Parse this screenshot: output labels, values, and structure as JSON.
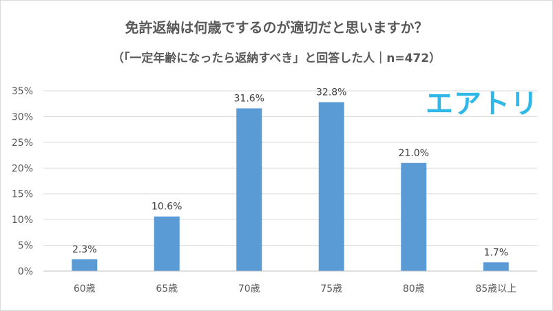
{
  "chart_data": {
    "type": "bar",
    "title": "免許返納は何歳でするのが適切だと思いますか？",
    "subtitle": "（「一定年齢になったら返納すべき」と回答した人｜n=472）",
    "categories": [
      "60歳",
      "65歳",
      "70歳",
      "75歳",
      "80歳",
      "85歳以上"
    ],
    "values": [
      2.3,
      10.6,
      31.6,
      32.8,
      21.0,
      1.7
    ],
    "data_labels": [
      "2.3%",
      "10.6%",
      "31.6%",
      "32.8%",
      "21.0%",
      "1.7%"
    ],
    "yticks": [
      "0%",
      "5%",
      "10%",
      "15%",
      "20%",
      "25%",
      "30%",
      "35%"
    ],
    "ylim": [
      0,
      35
    ],
    "grid": true,
    "bar_color": "#5b9bd5"
  },
  "logo": {
    "text": "エアトリ",
    "color": "#2fb7e8"
  }
}
